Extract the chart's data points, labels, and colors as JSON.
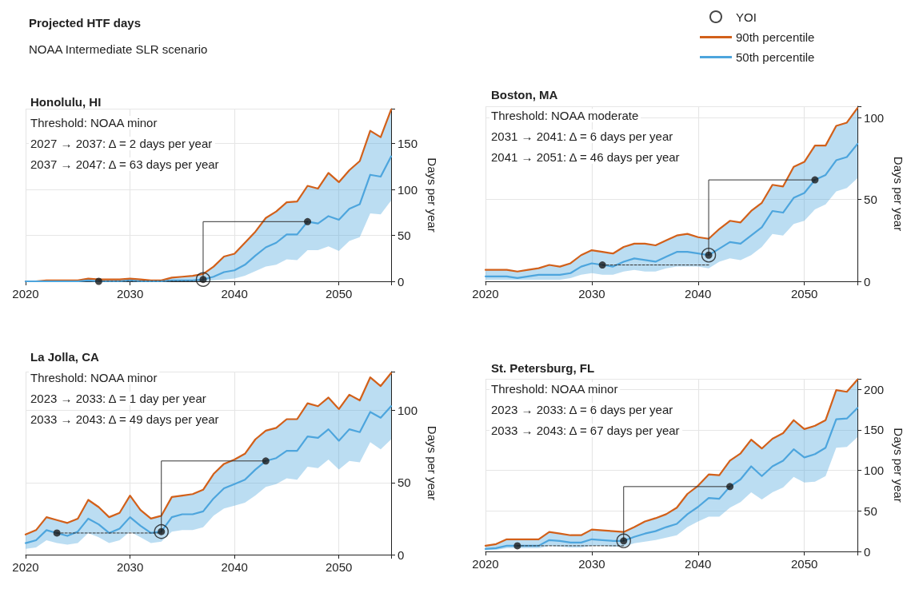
{
  "chart_data": [
    {
      "type": "other",
      "title": "Projected HTF days",
      "subtitle": "NOAA Intermediate SLR scenario"
    },
    {
      "type": "line",
      "title": "Honolulu, HI",
      "annotations": [
        "Threshold: NOAA minor",
        "2027 → 2037: Δ = 2 days per year",
        "2037 → 2047: Δ = 63 days per year"
      ],
      "ylabel": "Days per year",
      "x": [
        2020,
        2021,
        2022,
        2023,
        2024,
        2025,
        2026,
        2027,
        2028,
        2029,
        2030,
        2031,
        2032,
        2033,
        2034,
        2035,
        2036,
        2037,
        2038,
        2039,
        2040,
        2041,
        2042,
        2043,
        2044,
        2045,
        2046,
        2047,
        2048,
        2049,
        2050,
        2051,
        2052,
        2053,
        2054,
        2055
      ],
      "xlim": [
        2020,
        2055
      ],
      "xticks": [
        2020,
        2030,
        2040,
        2050
      ],
      "ylim": [
        0,
        188
      ],
      "yticks": [
        0,
        50,
        100,
        150
      ],
      "grid": true,
      "marker": "none",
      "series": [
        {
          "type": "bubble",
          "marker": "circle",
          "color": "#1a1a1a",
          "x": [
            2037
          ],
          "values": [
            2
          ],
          "sizes": [
            1
          ]
        },
        {
          "color": "#d2601a",
          "values": [
            0,
            0,
            1,
            1,
            1,
            1,
            3,
            2,
            2,
            2,
            3,
            2,
            1,
            1,
            4,
            5,
            6,
            8,
            16,
            27,
            30,
            42,
            54,
            69,
            76,
            86,
            87,
            104,
            101,
            118,
            108,
            121,
            131,
            164,
            157,
            187
          ]
        },
        {
          "color": "#4da5dd",
          "values": [
            0,
            0,
            0,
            0,
            0,
            0,
            1,
            0,
            0,
            0,
            1,
            0,
            0,
            0,
            1,
            1,
            1,
            2,
            5,
            10,
            12,
            18,
            28,
            37,
            42,
            51,
            51,
            65,
            63,
            71,
            67,
            79,
            84,
            116,
            114,
            136
          ],
          "lower": [
            0,
            0,
            0,
            0,
            0,
            0,
            0,
            0,
            0,
            0,
            0,
            0,
            0,
            0,
            0,
            0,
            0,
            0,
            1,
            2,
            3,
            6,
            11,
            16,
            18,
            24,
            23,
            34,
            34,
            38,
            33,
            44,
            48,
            74,
            73,
            88
          ],
          "upper": [
            0,
            0,
            1,
            1,
            1,
            1,
            3,
            2,
            2,
            2,
            3,
            2,
            1,
            1,
            4,
            5,
            6,
            8,
            16,
            27,
            30,
            42,
            54,
            69,
            76,
            86,
            87,
            104,
            101,
            118,
            108,
            121,
            131,
            164,
            157,
            187
          ]
        },
        {
          "type": "scatter",
          "marker": "circle",
          "color": "#1a1a1a",
          "x": [
            2027,
            2037,
            2047
          ],
          "values": [
            0,
            2,
            65
          ]
        },
        {
          "color": "#333333",
          "line_style": "dashed",
          "x": [
            2027,
            2037
          ],
          "values": [
            0,
            0
          ]
        },
        {
          "color": "#333333",
          "line_style": "solid",
          "x": [
            2037,
            2037,
            2047
          ],
          "values": [
            2,
            65,
            65
          ]
        }
      ]
    },
    {
      "type": "line",
      "title": "Boston, MA",
      "annotations": [
        "Threshold: NOAA moderate",
        "2031 → 2041: Δ = 6 days per year",
        "2041 → 2051: Δ = 46 days per year"
      ],
      "ylabel": "Days per year",
      "x": [
        2020,
        2021,
        2022,
        2023,
        2024,
        2025,
        2026,
        2027,
        2028,
        2029,
        2030,
        2031,
        2032,
        2033,
        2034,
        2035,
        2036,
        2037,
        2038,
        2039,
        2040,
        2041,
        2042,
        2043,
        2044,
        2045,
        2046,
        2047,
        2048,
        2049,
        2050,
        2051,
        2052,
        2053,
        2054,
        2055
      ],
      "xlim": [
        2020,
        2055
      ],
      "xticks": [
        2020,
        2030,
        2040,
        2050
      ],
      "ylim": [
        0,
        107
      ],
      "yticks": [
        0,
        50,
        100
      ],
      "grid": true,
      "marker": "none",
      "legend": "top",
      "series": [
        {
          "type": "bubble",
          "name": "YOI",
          "marker": "circle",
          "color": "#1a1a1a",
          "x": [
            2041
          ],
          "values": [
            16
          ],
          "sizes": [
            1
          ]
        },
        {
          "name": "90th percentile",
          "color": "#d2601a",
          "values": [
            7,
            7,
            7,
            6,
            7,
            8,
            10,
            9,
            11,
            16,
            19,
            18,
            17,
            21,
            23,
            23,
            22,
            25,
            28,
            29,
            27,
            26,
            32,
            37,
            36,
            43,
            48,
            59,
            58,
            70,
            73,
            83,
            83,
            95,
            97,
            106
          ]
        },
        {
          "name": "50th percentile",
          "color": "#4da5dd",
          "values": [
            3,
            3,
            3,
            2,
            3,
            4,
            4,
            4,
            5,
            9,
            11,
            10,
            9,
            12,
            14,
            13,
            12,
            15,
            18,
            18,
            17,
            16,
            20,
            24,
            23,
            28,
            33,
            43,
            42,
            51,
            54,
            62,
            65,
            74,
            76,
            84
          ],
          "lower": [
            1,
            1,
            1,
            1,
            1,
            1,
            1,
            1,
            2,
            4,
            5,
            4,
            4,
            6,
            7,
            6,
            6,
            8,
            9,
            9,
            9,
            8,
            12,
            14,
            13,
            16,
            21,
            29,
            28,
            35,
            37,
            44,
            47,
            55,
            57,
            63
          ],
          "upper": [
            7,
            7,
            7,
            6,
            7,
            8,
            10,
            9,
            11,
            16,
            19,
            18,
            17,
            21,
            23,
            23,
            22,
            25,
            28,
            29,
            27,
            26,
            32,
            37,
            36,
            43,
            48,
            59,
            58,
            70,
            73,
            83,
            83,
            95,
            97,
            106
          ]
        },
        {
          "type": "scatter",
          "marker": "circle",
          "color": "#1a1a1a",
          "x": [
            2031,
            2041,
            2051
          ],
          "values": [
            10,
            16,
            62
          ]
        },
        {
          "color": "#333333",
          "line_style": "dashed",
          "x": [
            2031,
            2041
          ],
          "values": [
            10,
            10
          ]
        },
        {
          "color": "#333333",
          "line_style": "solid",
          "x": [
            2041,
            2041,
            2051
          ],
          "values": [
            16,
            62,
            62
          ]
        }
      ]
    },
    {
      "type": "line",
      "title": "La Jolla, CA",
      "annotations": [
        "Threshold: NOAA minor",
        "2023 → 2033: Δ = 1 day per year",
        "2033 → 2043: Δ = 49 days per year"
      ],
      "ylabel": "Days per year",
      "x": [
        2020,
        2021,
        2022,
        2023,
        2024,
        2025,
        2026,
        2027,
        2028,
        2029,
        2030,
        2031,
        2032,
        2033,
        2034,
        2035,
        2036,
        2037,
        2038,
        2039,
        2040,
        2041,
        2042,
        2043,
        2044,
        2045,
        2046,
        2047,
        2048,
        2049,
        2050,
        2051,
        2052,
        2053,
        2054,
        2055
      ],
      "xlim": [
        2020,
        2055
      ],
      "xticks": [
        2020,
        2030,
        2040,
        2050
      ],
      "ylim": [
        0,
        127
      ],
      "yticks": [
        0,
        50,
        100
      ],
      "grid": true,
      "marker": "none",
      "series": [
        {
          "type": "bubble",
          "marker": "circle",
          "color": "#1a1a1a",
          "x": [
            2033
          ],
          "values": [
            16
          ],
          "sizes": [
            1
          ]
        },
        {
          "color": "#d2601a",
          "values": [
            14,
            17,
            26,
            24,
            22,
            25,
            38,
            33,
            26,
            29,
            41,
            31,
            25,
            27,
            40,
            41,
            42,
            45,
            56,
            63,
            66,
            70,
            80,
            86,
            88,
            94,
            94,
            105,
            103,
            109,
            101,
            111,
            107,
            123,
            117,
            126
          ]
        },
        {
          "color": "#4da5dd",
          "values": [
            8,
            10,
            17,
            15,
            13,
            16,
            25,
            21,
            15,
            18,
            26,
            20,
            15,
            16,
            26,
            28,
            28,
            30,
            39,
            46,
            49,
            52,
            59,
            65,
            67,
            72,
            72,
            82,
            81,
            87,
            79,
            87,
            85,
            99,
            95,
            103
          ],
          "lower": [
            4,
            5,
            10,
            8,
            7,
            8,
            15,
            12,
            8,
            10,
            16,
            12,
            8,
            9,
            16,
            17,
            17,
            19,
            27,
            32,
            34,
            36,
            41,
            47,
            49,
            53,
            52,
            61,
            60,
            66,
            59,
            65,
            64,
            78,
            73,
            80
          ],
          "upper": [
            14,
            17,
            26,
            24,
            22,
            25,
            38,
            33,
            26,
            29,
            41,
            31,
            25,
            27,
            40,
            41,
            42,
            45,
            56,
            63,
            66,
            70,
            80,
            86,
            88,
            94,
            94,
            105,
            103,
            109,
            101,
            111,
            107,
            123,
            117,
            126
          ]
        },
        {
          "type": "scatter",
          "marker": "circle",
          "color": "#1a1a1a",
          "x": [
            2023,
            2033,
            2043
          ],
          "values": [
            15,
            16,
            65
          ]
        },
        {
          "color": "#333333",
          "line_style": "dashed",
          "x": [
            2023,
            2033
          ],
          "values": [
            15,
            15
          ]
        },
        {
          "color": "#333333",
          "line_style": "solid",
          "x": [
            2033,
            2033,
            2043
          ],
          "values": [
            16,
            65,
            65
          ]
        }
      ]
    },
    {
      "type": "line",
      "title": "St. Petersburg, FL",
      "annotations": [
        "Threshold: NOAA minor",
        "2023 → 2033: Δ = 6 days per year",
        "2033 → 2043: Δ = 67 days per year"
      ],
      "ylabel": "Days per year",
      "x": [
        2020,
        2021,
        2022,
        2023,
        2024,
        2025,
        2026,
        2027,
        2028,
        2029,
        2030,
        2031,
        2032,
        2033,
        2034,
        2035,
        2036,
        2037,
        2038,
        2039,
        2040,
        2041,
        2042,
        2043,
        2044,
        2045,
        2046,
        2047,
        2048,
        2049,
        2050,
        2051,
        2052,
        2053,
        2054,
        2055
      ],
      "xlim": [
        2020,
        2055
      ],
      "xticks": [
        2020,
        2030,
        2040,
        2050
      ],
      "ylim": [
        0,
        213
      ],
      "yticks": [
        0,
        50,
        100,
        150,
        200
      ],
      "grid": true,
      "marker": "none",
      "series": [
        {
          "type": "bubble",
          "marker": "circle",
          "color": "#1a1a1a",
          "x": [
            2033
          ],
          "values": [
            13
          ],
          "sizes": [
            1
          ]
        },
        {
          "color": "#d2601a",
          "values": [
            7,
            9,
            15,
            15,
            15,
            15,
            24,
            22,
            20,
            20,
            27,
            26,
            25,
            24,
            30,
            37,
            41,
            46,
            54,
            71,
            81,
            95,
            94,
            112,
            121,
            138,
            127,
            139,
            146,
            162,
            151,
            155,
            162,
            199,
            197,
            212
          ]
        },
        {
          "color": "#4da5dd",
          "values": [
            3,
            4,
            7,
            7,
            7,
            7,
            14,
            13,
            11,
            11,
            15,
            14,
            13,
            13,
            18,
            22,
            25,
            30,
            34,
            46,
            55,
            66,
            65,
            80,
            89,
            105,
            93,
            105,
            112,
            126,
            116,
            120,
            128,
            163,
            164,
            177
          ],
          "lower": [
            2,
            2,
            4,
            4,
            4,
            4,
            7,
            6,
            5,
            5,
            7,
            7,
            6,
            6,
            10,
            12,
            14,
            17,
            20,
            30,
            37,
            43,
            43,
            54,
            61,
            73,
            64,
            73,
            79,
            92,
            85,
            86,
            93,
            128,
            129,
            141
          ],
          "upper": [
            7,
            9,
            15,
            15,
            15,
            15,
            24,
            22,
            20,
            20,
            27,
            26,
            25,
            24,
            30,
            37,
            41,
            46,
            54,
            71,
            81,
            95,
            94,
            112,
            121,
            138,
            127,
            139,
            146,
            162,
            151,
            155,
            162,
            199,
            197,
            212
          ]
        },
        {
          "type": "scatter",
          "marker": "circle",
          "color": "#1a1a1a",
          "x": [
            2023,
            2033,
            2043
          ],
          "values": [
            7,
            13,
            80
          ]
        },
        {
          "color": "#333333",
          "line_style": "dashed",
          "x": [
            2023,
            2033
          ],
          "values": [
            7,
            7
          ]
        },
        {
          "color": "#333333",
          "line_style": "solid",
          "x": [
            2033,
            2033,
            2043
          ],
          "values": [
            13,
            80,
            80
          ]
        }
      ]
    }
  ]
}
